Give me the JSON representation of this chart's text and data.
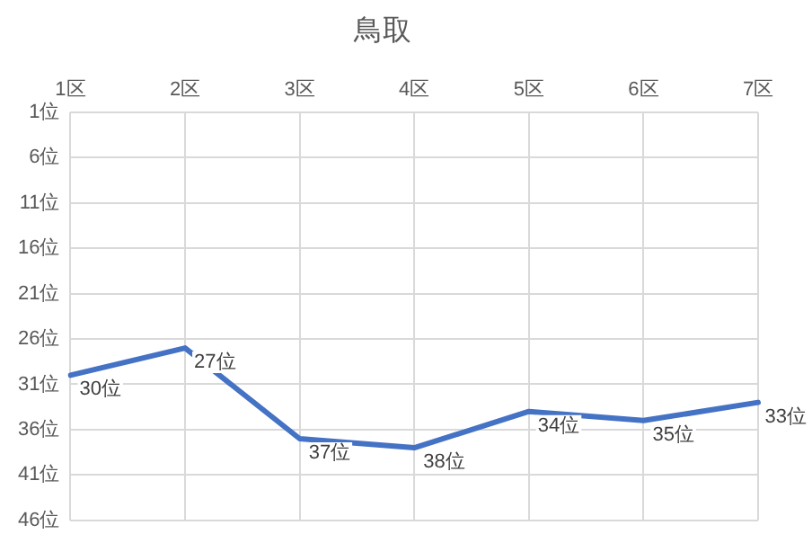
{
  "chart_data": {
    "type": "line",
    "title": "鳥取",
    "categories": [
      "1区",
      "2区",
      "3区",
      "4区",
      "5区",
      "6区",
      "7区"
    ],
    "series": [
      {
        "color": "#4472c4",
        "values": [
          30,
          27,
          37,
          38,
          34,
          35,
          33
        ]
      }
    ],
    "value_labels": [
      "30位",
      "27位",
      "37位",
      "38位",
      "34位",
      "35位",
      "33位"
    ],
    "ylim": [
      46,
      1
    ],
    "yticks": [
      {
        "value": 1,
        "label": "1位"
      },
      {
        "value": 6,
        "label": "6位"
      },
      {
        "value": 11,
        "label": "11位"
      },
      {
        "value": 16,
        "label": "16位"
      },
      {
        "value": 21,
        "label": "21位"
      },
      {
        "value": 26,
        "label": "26位"
      },
      {
        "value": 31,
        "label": "31位"
      },
      {
        "value": 36,
        "label": "36位"
      },
      {
        "value": 41,
        "label": "41位"
      },
      {
        "value": 46,
        "label": "46位"
      }
    ],
    "grid": true,
    "legend": false,
    "marker": "none",
    "line_style": "solid"
  }
}
